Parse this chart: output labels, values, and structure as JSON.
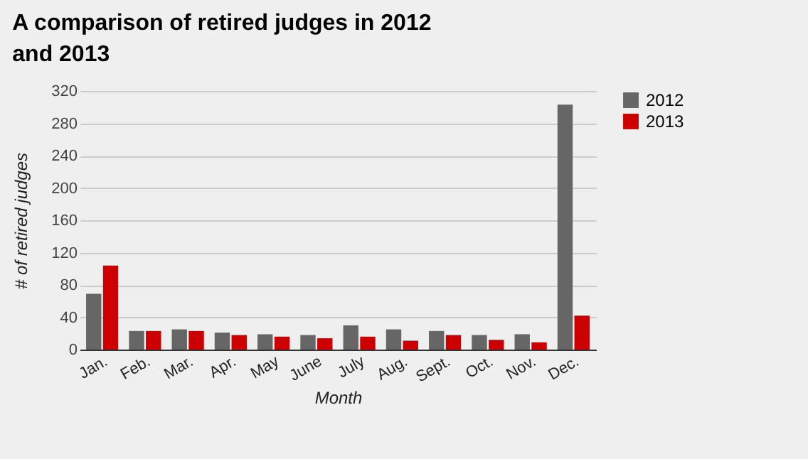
{
  "chart_data": {
    "type": "bar",
    "title": "A comparison of retired judges in 2012 and 2013",
    "xlabel": "Month",
    "ylabel": "# of retired judges",
    "categories": [
      "Jan.",
      "Feb.",
      "Mar.",
      "Apr.",
      "May",
      "June",
      "July",
      "Aug.",
      "Sept.",
      "Oct.",
      "Nov.",
      "Dec."
    ],
    "series": [
      {
        "name": "2012",
        "color": "#666666",
        "values": [
          69,
          23,
          25,
          21,
          19,
          18,
          30,
          25,
          23,
          18,
          19,
          303
        ]
      },
      {
        "name": "2013",
        "color": "#cc0000",
        "values": [
          104,
          23,
          23,
          18,
          16,
          14,
          16,
          11,
          18,
          12,
          9,
          42
        ]
      }
    ],
    "ylim": [
      0,
      320
    ],
    "yticks": [
      0,
      40,
      80,
      120,
      160,
      200,
      240,
      280,
      320
    ],
    "grid": "y",
    "legend": "top right"
  }
}
